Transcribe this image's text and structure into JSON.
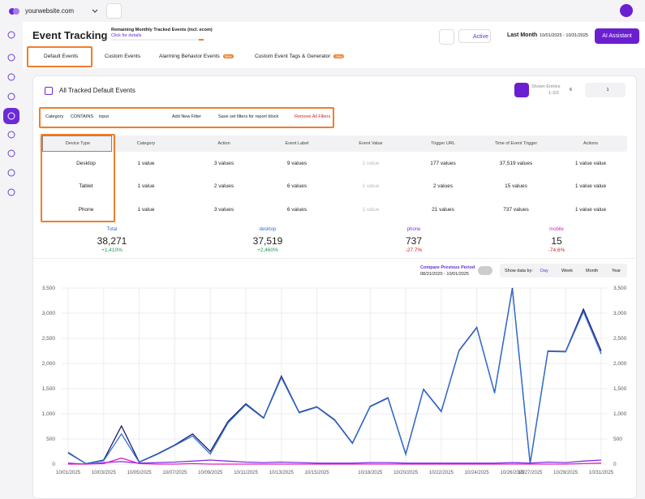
{
  "topbar": {
    "site": "yourwebsite.com"
  },
  "header": {
    "title": "Event Tracking",
    "remaining": "Remaining Monthly Tracked Events (incl. ecom)",
    "details": "Click for details",
    "status": "Active",
    "period": "Last Month",
    "range": "10/01/2025 - 10/31/2025",
    "assistant": "AI Assistant"
  },
  "tabs": [
    {
      "label": "Default Events"
    },
    {
      "label": "Custom Events"
    },
    {
      "label": "Alarming Behavior Events",
      "badge": "New"
    },
    {
      "label": "Custom Event Tags & Generator",
      "badge": "New"
    }
  ],
  "card": {
    "title": "All Tracked Default Events",
    "shown": "Shown Entries",
    "entries": "1-3/3",
    "per_page": "6",
    "page": "1"
  },
  "filters": {
    "field": "Category",
    "operator": "CONTAINS",
    "value": "input",
    "add": "Add New Filter",
    "save": "Save set filters for report block",
    "remove": "Remove All Filters"
  },
  "table": {
    "columns": [
      "Device Type",
      "Category",
      "Action",
      "Event Label",
      "Event Value",
      "Trigger URL",
      "Time of Event Trigger",
      "Actions"
    ],
    "rows": [
      [
        "Desktop",
        "1 value",
        "3 values",
        "9 values",
        "1 value",
        "177 values",
        "37,519 values",
        "1 value value"
      ],
      [
        "Tablet",
        "1 value",
        "2 values",
        "6 values",
        "1 value",
        "2 values",
        "15 values",
        "1 value value"
      ],
      [
        "Phone",
        "1 value",
        "3 values",
        "6 values",
        "1 value",
        "21 values",
        "737 values",
        "1 value value"
      ]
    ]
  },
  "stats": [
    {
      "label": "Total",
      "value": "38,271",
      "change": "+1,410%"
    },
    {
      "label": "desktop",
      "value": "37,519",
      "change": "+2,460%"
    },
    {
      "label": "phone",
      "value": "737",
      "change": "-27.7%"
    },
    {
      "label": "mobile",
      "value": "15",
      "change": "-74.6%"
    }
  ],
  "controls": {
    "compare": "Compare Previous Period",
    "previous": "08/31/2025 - 10/01/2025",
    "show_by": "Show data by:",
    "options": [
      "Day",
      "Week",
      "Month",
      "Year"
    ]
  },
  "chart_data": {
    "type": "line",
    "grid": true,
    "categories": [
      "10/01/2025",
      null,
      "10/03/2025",
      null,
      "10/05/2025",
      null,
      "10/07/2025",
      null,
      "10/09/2025",
      null,
      "10/11/2025",
      null,
      "10/13/2025",
      null,
      "10/15/2025",
      null,
      null,
      "10/18/2025",
      null,
      "10/20/2025",
      null,
      "10/22/2025",
      null,
      "10/24/2025",
      null,
      "10/26/2025",
      "10/27/2025",
      null,
      "10/29/2025",
      null,
      "10/31/2025"
    ],
    "series": [
      {
        "color": "#1a1a6e",
        "values": [
          230,
          10,
          80,
          760,
          40,
          200,
          380,
          600,
          250,
          850,
          1200,
          920,
          1750,
          1030,
          1140,
          880,
          420,
          1150,
          1320,
          200,
          1490,
          1050,
          2260,
          2720,
          1420,
          3500,
          10,
          2250,
          2240,
          3080,
          2250
        ]
      },
      {
        "color": "#2f6fd6",
        "values": [
          220,
          10,
          70,
          600,
          35,
          190,
          370,
          560,
          200,
          820,
          1180,
          910,
          1720,
          1020,
          1130,
          870,
          410,
          1140,
          1310,
          190,
          1480,
          1040,
          2250,
          2710,
          1410,
          3480,
          5,
          2240,
          2230,
          3030,
          2190
        ]
      },
      {
        "color": "#8a2be2",
        "values": [
          20,
          0,
          30,
          50,
          20,
          30,
          40,
          60,
          80,
          60,
          40,
          30,
          40,
          30,
          20,
          20,
          20,
          30,
          30,
          20,
          20,
          20,
          20,
          20,
          20,
          30,
          20,
          40,
          30,
          60,
          80
        ]
      },
      {
        "color": "#e020c0",
        "values": [
          0,
          0,
          10,
          120,
          10,
          0,
          0,
          10,
          0,
          0,
          0,
          0,
          0,
          0,
          0,
          0,
          0,
          0,
          0,
          0,
          0,
          0,
          0,
          0,
          0,
          0,
          0,
          0,
          0,
          10,
          20
        ]
      }
    ],
    "ylim": [
      0,
      3500
    ],
    "yticks": [
      0,
      500,
      {
        "value": 1000,
        "label": "1,000"
      },
      {
        "value": 1500,
        "label": "1,500"
      },
      {
        "value": 2000,
        "label": "2,000"
      },
      {
        "value": 2500,
        "label": "2,500"
      },
      {
        "value": 3000,
        "label": "3,000"
      },
      {
        "value": 3500,
        "label": "3,500"
      }
    ],
    "y2lim": [
      0,
      3500
    ],
    "y2ticks": [
      0,
      500,
      {
        "value": 1000,
        "label": "1,000"
      },
      {
        "value": 1500,
        "label": "1,500"
      },
      {
        "value": 2000,
        "label": "2,000"
      },
      {
        "value": 2500,
        "label": "2,500"
      },
      {
        "value": 3000,
        "label": "3,000"
      },
      {
        "value": 3500,
        "label": "3,500"
      }
    ]
  }
}
